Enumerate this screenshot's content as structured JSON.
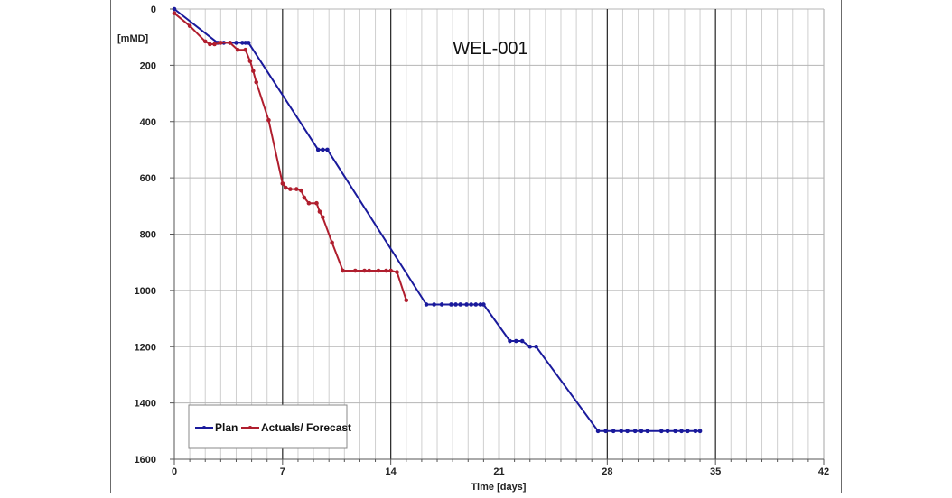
{
  "chart_data": {
    "type": "line",
    "title": "WEL-001",
    "xlabel": "Time [days]",
    "ylabel": "[mMD]",
    "xlim": [
      0,
      42
    ],
    "ylim": [
      0,
      1600
    ],
    "y_inverted": true,
    "x_ticks": [
      0,
      7,
      14,
      21,
      28,
      35,
      42
    ],
    "y_ticks": [
      0,
      200,
      400,
      600,
      800,
      1000,
      1200,
      1400,
      1600
    ],
    "grid": {
      "x_minor_step": 1,
      "x_major_step": 7,
      "y_step": 200
    },
    "legend_position": "lower-left",
    "series": [
      {
        "name": "Plan",
        "color": "#1a1a9c",
        "points": [
          [
            0,
            0
          ],
          [
            2.8,
            120
          ],
          [
            3.2,
            120
          ],
          [
            3.6,
            120
          ],
          [
            4.0,
            120
          ],
          [
            4.4,
            120
          ],
          [
            4.6,
            120
          ],
          [
            4.8,
            120
          ],
          [
            9.3,
            500
          ],
          [
            9.6,
            500
          ],
          [
            9.9,
            500
          ],
          [
            16.3,
            1050
          ],
          [
            16.8,
            1050
          ],
          [
            17.3,
            1050
          ],
          [
            17.9,
            1050
          ],
          [
            18.2,
            1050
          ],
          [
            18.5,
            1050
          ],
          [
            18.9,
            1050
          ],
          [
            19.2,
            1050
          ],
          [
            19.5,
            1050
          ],
          [
            19.8,
            1050
          ],
          [
            20.0,
            1050
          ],
          [
            21.7,
            1180
          ],
          [
            22.1,
            1180
          ],
          [
            22.5,
            1180
          ],
          [
            23.0,
            1200
          ],
          [
            23.4,
            1200
          ],
          [
            27.4,
            1500
          ],
          [
            27.9,
            1500
          ],
          [
            28.4,
            1500
          ],
          [
            28.9,
            1500
          ],
          [
            29.3,
            1500
          ],
          [
            29.8,
            1500
          ],
          [
            30.2,
            1500
          ],
          [
            30.6,
            1500
          ],
          [
            31.5,
            1500
          ],
          [
            31.9,
            1500
          ],
          [
            32.4,
            1500
          ],
          [
            32.8,
            1500
          ],
          [
            33.2,
            1500
          ],
          [
            33.7,
            1500
          ],
          [
            34.0,
            1500
          ]
        ]
      },
      {
        "name": "Actuals/ Forecast",
        "color": "#b01e2e",
        "points": [
          [
            0,
            15
          ],
          [
            1,
            60
          ],
          [
            2,
            115
          ],
          [
            2.3,
            125
          ],
          [
            2.6,
            125
          ],
          [
            3,
            120
          ],
          [
            3.6,
            120
          ],
          [
            4.1,
            145
          ],
          [
            4.6,
            145
          ],
          [
            4.9,
            185
          ],
          [
            5.1,
            220
          ],
          [
            5.3,
            260
          ],
          [
            6.1,
            395
          ],
          [
            7,
            620
          ],
          [
            7.2,
            635
          ],
          [
            7.5,
            640
          ],
          [
            7.9,
            640
          ],
          [
            8.2,
            645
          ],
          [
            8.4,
            670
          ],
          [
            8.7,
            690
          ],
          [
            9.2,
            690
          ],
          [
            9.4,
            720
          ],
          [
            9.6,
            740
          ],
          [
            10.2,
            830
          ],
          [
            10.9,
            930
          ],
          [
            11.7,
            930
          ],
          [
            12.3,
            930
          ],
          [
            12.6,
            930
          ],
          [
            13.2,
            930
          ],
          [
            13.7,
            930
          ],
          [
            14.0,
            930
          ],
          [
            14.4,
            935
          ],
          [
            15.0,
            1035
          ]
        ]
      }
    ]
  },
  "legend": {
    "plan_label": "Plan",
    "actuals_label": "Actuals/ Forecast"
  }
}
